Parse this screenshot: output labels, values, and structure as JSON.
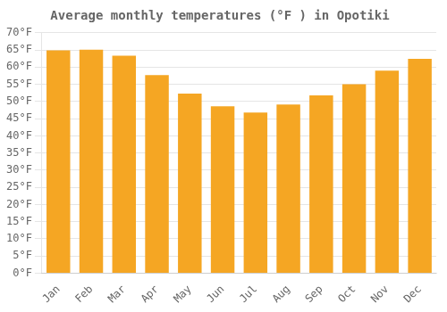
{
  "chart_data": {
    "type": "bar",
    "title": "Average monthly temperatures (°F ) in Opotiki",
    "categories": [
      "Jan",
      "Feb",
      "Mar",
      "Apr",
      "May",
      "Jun",
      "Jul",
      "Aug",
      "Sep",
      "Oct",
      "Nov",
      "Dec"
    ],
    "values": [
      64.9,
      65.1,
      63.3,
      57.7,
      52.3,
      48.6,
      46.8,
      49.1,
      51.8,
      55.0,
      59.0,
      62.4
    ],
    "color": "#F5A623",
    "ylim": [
      0,
      70
    ],
    "yticks": [
      {
        "value": 0,
        "label": "0°F"
      },
      {
        "value": 5,
        "label": "5°F"
      },
      {
        "value": 10,
        "label": "10°F"
      },
      {
        "value": 15,
        "label": "15°F"
      },
      {
        "value": 20,
        "label": "20°F"
      },
      {
        "value": 25,
        "label": "25°F"
      },
      {
        "value": 30,
        "label": "30°F"
      },
      {
        "value": 35,
        "label": "35°F"
      },
      {
        "value": 40,
        "label": "40°F"
      },
      {
        "value": 45,
        "label": "45°F"
      },
      {
        "value": 50,
        "label": "50°F"
      },
      {
        "value": 55,
        "label": "55°F"
      },
      {
        "value": 60,
        "label": "60°F"
      },
      {
        "value": 65,
        "label": "65°F"
      },
      {
        "value": 70,
        "label": "70°F"
      }
    ],
    "grid": true
  }
}
